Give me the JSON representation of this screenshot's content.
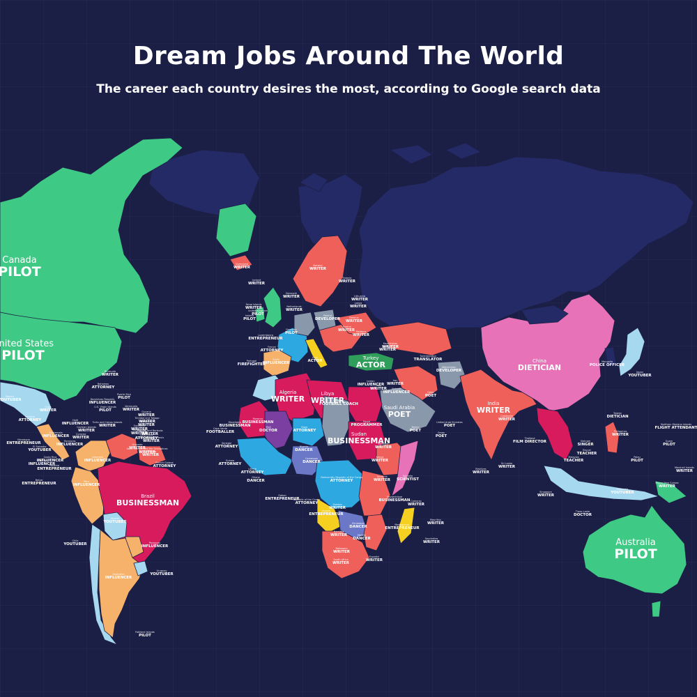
{
  "header": {
    "title": "Dream Jobs Around The World",
    "subtitle": "The career each country desires the most, according to Google search data"
  },
  "colors": {
    "background": "#1c1f45",
    "pilot": "#3ec985",
    "writer": "#f0605b",
    "businessman": "#d81b5d",
    "dietician": "#e872b8",
    "influencer": "#f6b26b",
    "youtuber": "#a6d8f0",
    "attorney": "#2ea8e0",
    "poet": "#8a98ac",
    "doctor": "#7b3fa1",
    "dancer": "#6b78c8",
    "actor": "#2f9e5a",
    "entrepreneur": "#f5d020",
    "unlabeled_land": "#232a66"
  },
  "labels": [
    {
      "id": "canada",
      "country": "Canada",
      "job": "PILOT",
      "size": "big"
    },
    {
      "id": "usa",
      "country": "United States",
      "job": "PILOT",
      "size": "big"
    },
    {
      "id": "brazil",
      "country": "Brazil",
      "job": "BUSINESSMAN",
      "size": "mid"
    },
    {
      "id": "china",
      "country": "China",
      "job": "DIETICIAN",
      "size": "mid"
    },
    {
      "id": "india",
      "country": "India",
      "job": "WRITER",
      "size": "mid"
    },
    {
      "id": "australia",
      "country": "Australia",
      "job": "PILOT",
      "size": "big"
    },
    {
      "id": "algeria",
      "country": "Algeria",
      "job": "WRITER",
      "size": "mid"
    },
    {
      "id": "libya",
      "country": "Libya",
      "job": "WRITER",
      "size": "mid"
    },
    {
      "id": "saudi",
      "country": "Saudi Arabia",
      "job": "POET",
      "size": "mid"
    },
    {
      "id": "turkey",
      "country": "Turkey",
      "job": "ACTOR",
      "size": "mid"
    },
    {
      "id": "sudan",
      "country": "Sudan",
      "job": "BUSINESSMAN",
      "size": "mid"
    },
    {
      "id": "drc",
      "country": "Democratic Republic of the Congo",
      "job": "ATTORNEY",
      "size": "sm"
    },
    {
      "id": "argentina",
      "country": "Argentina",
      "job": "INFLUENCER",
      "size": "sm"
    },
    {
      "id": "peru",
      "country": "Peru",
      "job": "INFLUENCER",
      "size": "sm"
    },
    {
      "id": "colombia",
      "country": "Colombia",
      "job": "INFLUENCER",
      "size": "sm"
    },
    {
      "id": "mexico",
      "country": "Mexico",
      "job": "YOUTUBER",
      "size": "sm"
    },
    {
      "id": "bolivia",
      "country": "Bolivia",
      "job": "YOUTUBER",
      "size": "sm"
    },
    {
      "id": "chile",
      "country": "Chile",
      "job": "YOUTUBER",
      "size": "sm"
    },
    {
      "id": "uruguay",
      "country": "Uruguay",
      "job": "YOUTUBER",
      "size": "sm"
    },
    {
      "id": "paraguay",
      "country": "Paraguay",
      "job": "INFLUENCER",
      "size": "sm"
    },
    {
      "id": "falklands",
      "country": "Falkland Islands",
      "job": "PILOT",
      "size": "sm"
    },
    {
      "id": "greenland",
      "country": "Greenland",
      "job": "WRITER",
      "size": "sm"
    },
    {
      "id": "iceland",
      "country": "Iceland",
      "job": "WRITER",
      "size": "sm"
    },
    {
      "id": "norway",
      "country": "Norway",
      "job": "WRITER",
      "size": "sm"
    },
    {
      "id": "faroe",
      "country": "Faroe Islands",
      "job": "WRITER",
      "size": "sm"
    },
    {
      "id": "uk",
      "country": "United Kingdom",
      "job": "PILOT",
      "size": "sm"
    },
    {
      "id": "ireland",
      "country": "Ireland",
      "job": "PILOT",
      "size": "sm"
    },
    {
      "id": "denmark",
      "country": "Denmark",
      "job": "WRITER",
      "size": "sm"
    },
    {
      "id": "lithuania",
      "country": "Lithuania",
      "job": "WRITER",
      "size": "sm"
    },
    {
      "id": "latvia",
      "country": "Latvia",
      "job": "WRITER",
      "size": "sm"
    },
    {
      "id": "estonia",
      "country": "Estonia",
      "job": "WRITER",
      "size": "sm"
    },
    {
      "id": "belarus",
      "country": "Belarus",
      "job": "WRITER",
      "size": "sm"
    },
    {
      "id": "poland",
      "country": "Poland",
      "job": "DEVELOPER",
      "size": "sm"
    },
    {
      "id": "ukraine",
      "country": "Ukraine",
      "job": "WRITER",
      "size": "sm"
    },
    {
      "id": "germany",
      "country": "Germany",
      "job": "PILOT",
      "size": "sm"
    },
    {
      "id": "netherlands",
      "country": "Netherlands",
      "job": "WRITER",
      "size": "sm"
    },
    {
      "id": "luxembourg",
      "country": "Luxembourg",
      "job": "ENTREPRENEUR",
      "size": "sm"
    },
    {
      "id": "france",
      "country": "France",
      "job": "ATTORNEY",
      "size": "sm"
    },
    {
      "id": "portugal",
      "country": "Portugal",
      "job": "FIREFIGHTER",
      "size": "sm"
    },
    {
      "id": "spain",
      "country": "Spain",
      "job": "INFLUENCER",
      "size": "sm"
    },
    {
      "id": "italy",
      "country": "Italy",
      "job": "ACTOR",
      "size": "sm"
    },
    {
      "id": "moldova",
      "country": "Moldova",
      "job": "WRITER",
      "size": "sm"
    },
    {
      "id": "georgia",
      "country": "Georgia",
      "job": "WRITER",
      "size": "sm"
    },
    {
      "id": "kazakhstan",
      "country": "Kazakhstan",
      "job": "WRITER",
      "size": "sm"
    },
    {
      "id": "turkmenistan",
      "country": "Turkmenistan",
      "job": "TRANSLATOR",
      "size": "sm"
    },
    {
      "id": "afghanistan",
      "country": "Afghanistan",
      "job": "DEVELOPER",
      "size": "sm"
    },
    {
      "id": "iran",
      "country": "Iran",
      "job": "WRITER",
      "size": "sm"
    },
    {
      "id": "iraq",
      "country": "Iraq",
      "job": "WRITER",
      "size": "sm"
    },
    {
      "id": "jordan",
      "country": "Jordan",
      "job": "INFLUENCER",
      "size": "sm"
    },
    {
      "id": "bahrain",
      "country": "Bahrain",
      "job": "INFLUENCER",
      "size": "sm"
    },
    {
      "id": "qatar",
      "country": "Qatar",
      "job": "POET",
      "size": "sm"
    },
    {
      "id": "uae",
      "country": "United Arab Emirates",
      "job": "POET",
      "size": "sm"
    },
    {
      "id": "oman",
      "country": "Oman",
      "job": "POET",
      "size": "sm"
    },
    {
      "id": "yemen",
      "country": "Yemen",
      "job": "POET",
      "size": "sm"
    },
    {
      "id": "morocco",
      "country": "Morocco",
      "job": "BUSINESSMAN",
      "size": "sm"
    },
    {
      "id": "mauritania",
      "country": "Mauritania",
      "job": "BUSINESSMAN",
      "size": "sm"
    },
    {
      "id": "mali",
      "country": "Mali",
      "job": "DOCTOR",
      "size": "sm"
    },
    {
      "id": "niger",
      "country": "Niger",
      "job": "ATTORNEY",
      "size": "sm"
    },
    {
      "id": "chad",
      "country": "Chad",
      "job": "FOOTBALL COACH",
      "size": "sm"
    },
    {
      "id": "egypt",
      "country": "Egypt",
      "job": "PROGRAMMER",
      "size": "sm"
    },
    {
      "id": "ethiopia",
      "country": "Ethiopia",
      "job": "WRITER",
      "size": "sm"
    },
    {
      "id": "nigeria",
      "country": "Nigeria",
      "job": "DANCER",
      "size": "sm"
    },
    {
      "id": "cameroon",
      "country": "Cameroon",
      "job": "DANCER",
      "size": "sm"
    },
    {
      "id": "kenya",
      "country": "Kenya",
      "job": "WRITER",
      "size": "sm"
    },
    {
      "id": "somalia",
      "country": "Somalia",
      "job": "SCIENTIST",
      "size": "sm"
    },
    {
      "id": "tanzania",
      "country": "Tanzania",
      "job": "WRITER",
      "size": "sm"
    },
    {
      "id": "angola",
      "country": "Angola",
      "job": "ENTREPRENEUR",
      "size": "sm"
    },
    {
      "id": "zambia",
      "country": "Zambia",
      "job": "WRITER",
      "size": "sm"
    },
    {
      "id": "zimbabwe",
      "country": "Zimbabwe",
      "job": "DANCER",
      "size": "sm"
    },
    {
      "id": "namibia",
      "country": "Namibia",
      "job": "WRITER",
      "size": "sm"
    },
    {
      "id": "botswana",
      "country": "Botswana",
      "job": "WRITER",
      "size": "sm"
    },
    {
      "id": "southafrica",
      "country": "South Africa",
      "job": "WRITER",
      "size": "sm"
    },
    {
      "id": "mozambique",
      "country": "Mozambique",
      "job": "BUSINESSMAN",
      "size": "sm"
    },
    {
      "id": "madagascar",
      "country": "Madagascar",
      "job": "ENTREPRENEUR",
      "size": "sm"
    },
    {
      "id": "mauritius",
      "country": "Mauritius",
      "job": "WRITER",
      "size": "sm"
    },
    {
      "id": "malawi",
      "country": "Malawi",
      "job": "DANCER",
      "size": "sm"
    },
    {
      "id": "eswatini",
      "country": "Eswatini",
      "job": "WRITER",
      "size": "sm"
    },
    {
      "id": "comoros",
      "country": "Comoros",
      "job": "WRITER",
      "size": "sm"
    },
    {
      "id": "seychelles",
      "country": "Seychelles",
      "job": "WRITER",
      "size": "sm"
    },
    {
      "id": "capeverde",
      "country": "Cape Verde",
      "job": "FOOTBALLER",
      "size": "sm"
    },
    {
      "id": "senegal",
      "country": "Senegal",
      "job": "ATTORNEY",
      "size": "sm"
    },
    {
      "id": "guinea",
      "country": "Guinea",
      "job": "ATTORNEY",
      "size": "sm"
    },
    {
      "id": "ghana",
      "country": "Ghana",
      "job": "DANCER",
      "size": "sm"
    },
    {
      "id": "liberia",
      "country": "Liberia",
      "job": "ATTORNEY",
      "size": "sm"
    },
    {
      "id": "gabon",
      "country": "Gabon",
      "job": "ENTREPRENEUR",
      "size": "sm"
    },
    {
      "id": "congo",
      "country": "Republic of the Congo",
      "job": "ATTORNEY",
      "size": "sm"
    },
    {
      "id": "mongolia",
      "country": "Mongolia",
      "job": "POLICE OFFICER",
      "size": "sm"
    },
    {
      "id": "japan",
      "country": "Japan",
      "job": "YOUTUBER",
      "size": "sm"
    },
    {
      "id": "taiwan",
      "country": "Taiwan",
      "job": "DIETICIAN",
      "size": "sm"
    },
    {
      "id": "philippines",
      "country": "Philippines",
      "job": "WRITER",
      "size": "sm"
    },
    {
      "id": "thailand",
      "country": "Thailand",
      "job": "FILM DIRECTOR",
      "size": "sm"
    },
    {
      "id": "cambodia",
      "country": "Cambodia",
      "job": "WRITER",
      "size": "sm"
    },
    {
      "id": "vietnam",
      "country": "Vietnam",
      "job": "SINGER",
      "size": "sm"
    },
    {
      "id": "brunei",
      "country": "Brunei",
      "job": "TEACHER",
      "size": "sm"
    },
    {
      "id": "malaysia",
      "country": "Malaysia",
      "job": "TEACHER",
      "size": "sm"
    },
    {
      "id": "singapore",
      "country": "Singapore",
      "job": "WRITER",
      "size": "sm"
    },
    {
      "id": "indonesia",
      "country": "Indonesia",
      "job": "YOUTUBER",
      "size": "sm"
    },
    {
      "id": "timor",
      "country": "Timor-Leste",
      "job": "DOCTOR",
      "size": "sm"
    },
    {
      "id": "png",
      "country": "Papua New Guinea",
      "job": "WRITER",
      "size": "sm"
    },
    {
      "id": "palau",
      "country": "Palau",
      "job": "PILOT",
      "size": "sm"
    },
    {
      "id": "guam",
      "country": "Guam",
      "job": "PILOT",
      "size": "sm"
    },
    {
      "id": "marshall",
      "country": "Marshall Islands",
      "job": "WRITER",
      "size": "sm"
    },
    {
      "id": "nmariana",
      "country": "Northern Mariana Islands",
      "job": "FLIGHT ATTENDANT",
      "size": "sm"
    },
    {
      "id": "srilanka",
      "country": "Sri Lanka",
      "job": "WRITER",
      "size": "sm"
    },
    {
      "id": "maldives",
      "country": "Maldives",
      "job": "WRITER",
      "size": "sm"
    },
    {
      "id": "bermuda",
      "country": "Bermuda",
      "job": "WRITER",
      "size": "sm"
    },
    {
      "id": "bahamas",
      "country": "Bahamas",
      "job": "ATTORNEY",
      "size": "sm"
    },
    {
      "id": "cuba",
      "country": "Cuba",
      "job": "WRITER",
      "size": "sm"
    },
    {
      "id": "jamaica",
      "country": "Jamaica",
      "job": "ATTORNEY",
      "size": "sm"
    },
    {
      "id": "haiti",
      "country": "Haiti",
      "job": "INFLUENCER",
      "size": "sm"
    },
    {
      "id": "dominicanrep",
      "country": "Dominican Republic",
      "job": "INFLUENCER",
      "size": "sm"
    },
    {
      "id": "puertorico",
      "country": "Puerto Rico",
      "job": "PILOT",
      "size": "sm"
    },
    {
      "id": "guatemala",
      "country": "Guatemala",
      "job": "INFLUENCER",
      "size": "sm"
    },
    {
      "id": "honduras",
      "country": "Honduras",
      "job": "INFLUENCER",
      "size": "sm"
    },
    {
      "id": "elsalvador",
      "country": "El Salvador",
      "job": "YOUTUBER",
      "size": "sm"
    },
    {
      "id": "nicaragua",
      "country": "Nicaragua",
      "job": "ENTREPRENEUR",
      "size": "sm"
    },
    {
      "id": "costarica",
      "country": "Costa Rica",
      "job": "INFLUENCER",
      "size": "sm"
    },
    {
      "id": "panama",
      "country": "Panama",
      "job": "ENTREPRENEUR",
      "size": "sm"
    },
    {
      "id": "belize",
      "country": "Belize",
      "job": "ENTREPRENEUR",
      "size": "sm"
    },
    {
      "id": "ecuador",
      "country": "Ecuador",
      "job": "INFLUENCER",
      "size": "sm"
    },
    {
      "id": "venezuela",
      "country": "Venezuela",
      "job": "WRITER",
      "size": "sm"
    },
    {
      "id": "guyana",
      "country": "Guyana",
      "job": "WRITER",
      "size": "sm"
    },
    {
      "id": "suriname",
      "country": "Suriname",
      "job": "WRITER",
      "size": "sm"
    },
    {
      "id": "frenchguiana",
      "country": "French Guiana",
      "job": "ATTORNEY",
      "size": "sm"
    },
    {
      "id": "trinidad",
      "country": "Trinidad and Tobago",
      "job": "WRITER",
      "size": "sm"
    },
    {
      "id": "barbados",
      "country": "Barbados",
      "job": "WRITER",
      "size": "sm"
    },
    {
      "id": "stlucia",
      "country": "Saint Lucia",
      "job": "ATTORNEY",
      "size": "sm"
    },
    {
      "id": "grenada",
      "country": "Grenada",
      "job": "WRITER",
      "size": "sm"
    },
    {
      "id": "antigua",
      "country": "Antigua and Barbuda",
      "job": "WRITER",
      "size": "sm"
    },
    {
      "id": "stkitts",
      "country": "Saint Kitts and Nevis",
      "job": "WRITER",
      "size": "sm"
    },
    {
      "id": "usvi",
      "country": "U.S. Virgin Islands",
      "job": "PILOT",
      "size": "sm"
    },
    {
      "id": "dominica",
      "country": "Dominica",
      "job": "WRITER",
      "size": "sm"
    },
    {
      "id": "stvincent",
      "country": "Saint Vincent and the Grenadines",
      "job": "WRITER",
      "size": "sm"
    },
    {
      "id": "montserrat",
      "country": "Montserrat",
      "job": "WRITER",
      "size": "sm"
    },
    {
      "id": "curacao",
      "country": "Curacao",
      "job": "WRITER",
      "size": "sm"
    },
    {
      "id": "caymans",
      "country": "Cayman Islands",
      "job": "WRITER",
      "size": "sm"
    },
    {
      "id": "turks",
      "country": "Turks and Caicos Islands",
      "job": "WRITER",
      "size": "sm"
    }
  ]
}
